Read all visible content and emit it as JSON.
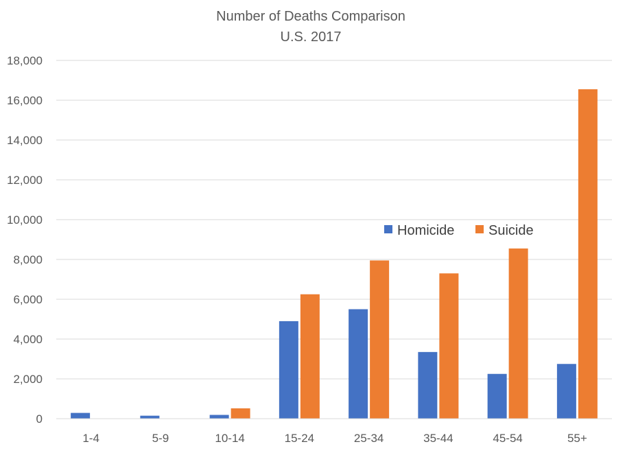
{
  "chart_data": {
    "type": "bar",
    "title": "Number of Deaths Comparison",
    "subtitle": "U.S. 2017",
    "xlabel": "",
    "ylabel": "",
    "ylim": [
      0,
      18000
    ],
    "yticks": [
      0,
      2000,
      4000,
      6000,
      8000,
      10000,
      12000,
      14000,
      16000,
      18000
    ],
    "ytick_labels": [
      "0",
      "2,000",
      "4,000",
      "6,000",
      "8,000",
      "10,000",
      "12,000",
      "14,000",
      "16,000",
      "18,000"
    ],
    "categories": [
      "1-4",
      "5-9",
      "10-14",
      "15-24",
      "25-34",
      "35-44",
      "45-54",
      "55+"
    ],
    "series": [
      {
        "name": "Homicide",
        "color": "#4472c4",
        "values": [
          290,
          150,
          190,
          4900,
          5500,
          3350,
          2250,
          2750
        ]
      },
      {
        "name": "Suicide",
        "color": "#ed7d31",
        "values": [
          0,
          0,
          520,
          6250,
          7950,
          7300,
          8550,
          16550
        ]
      }
    ],
    "grid": true,
    "legend_position": "inside-right"
  }
}
